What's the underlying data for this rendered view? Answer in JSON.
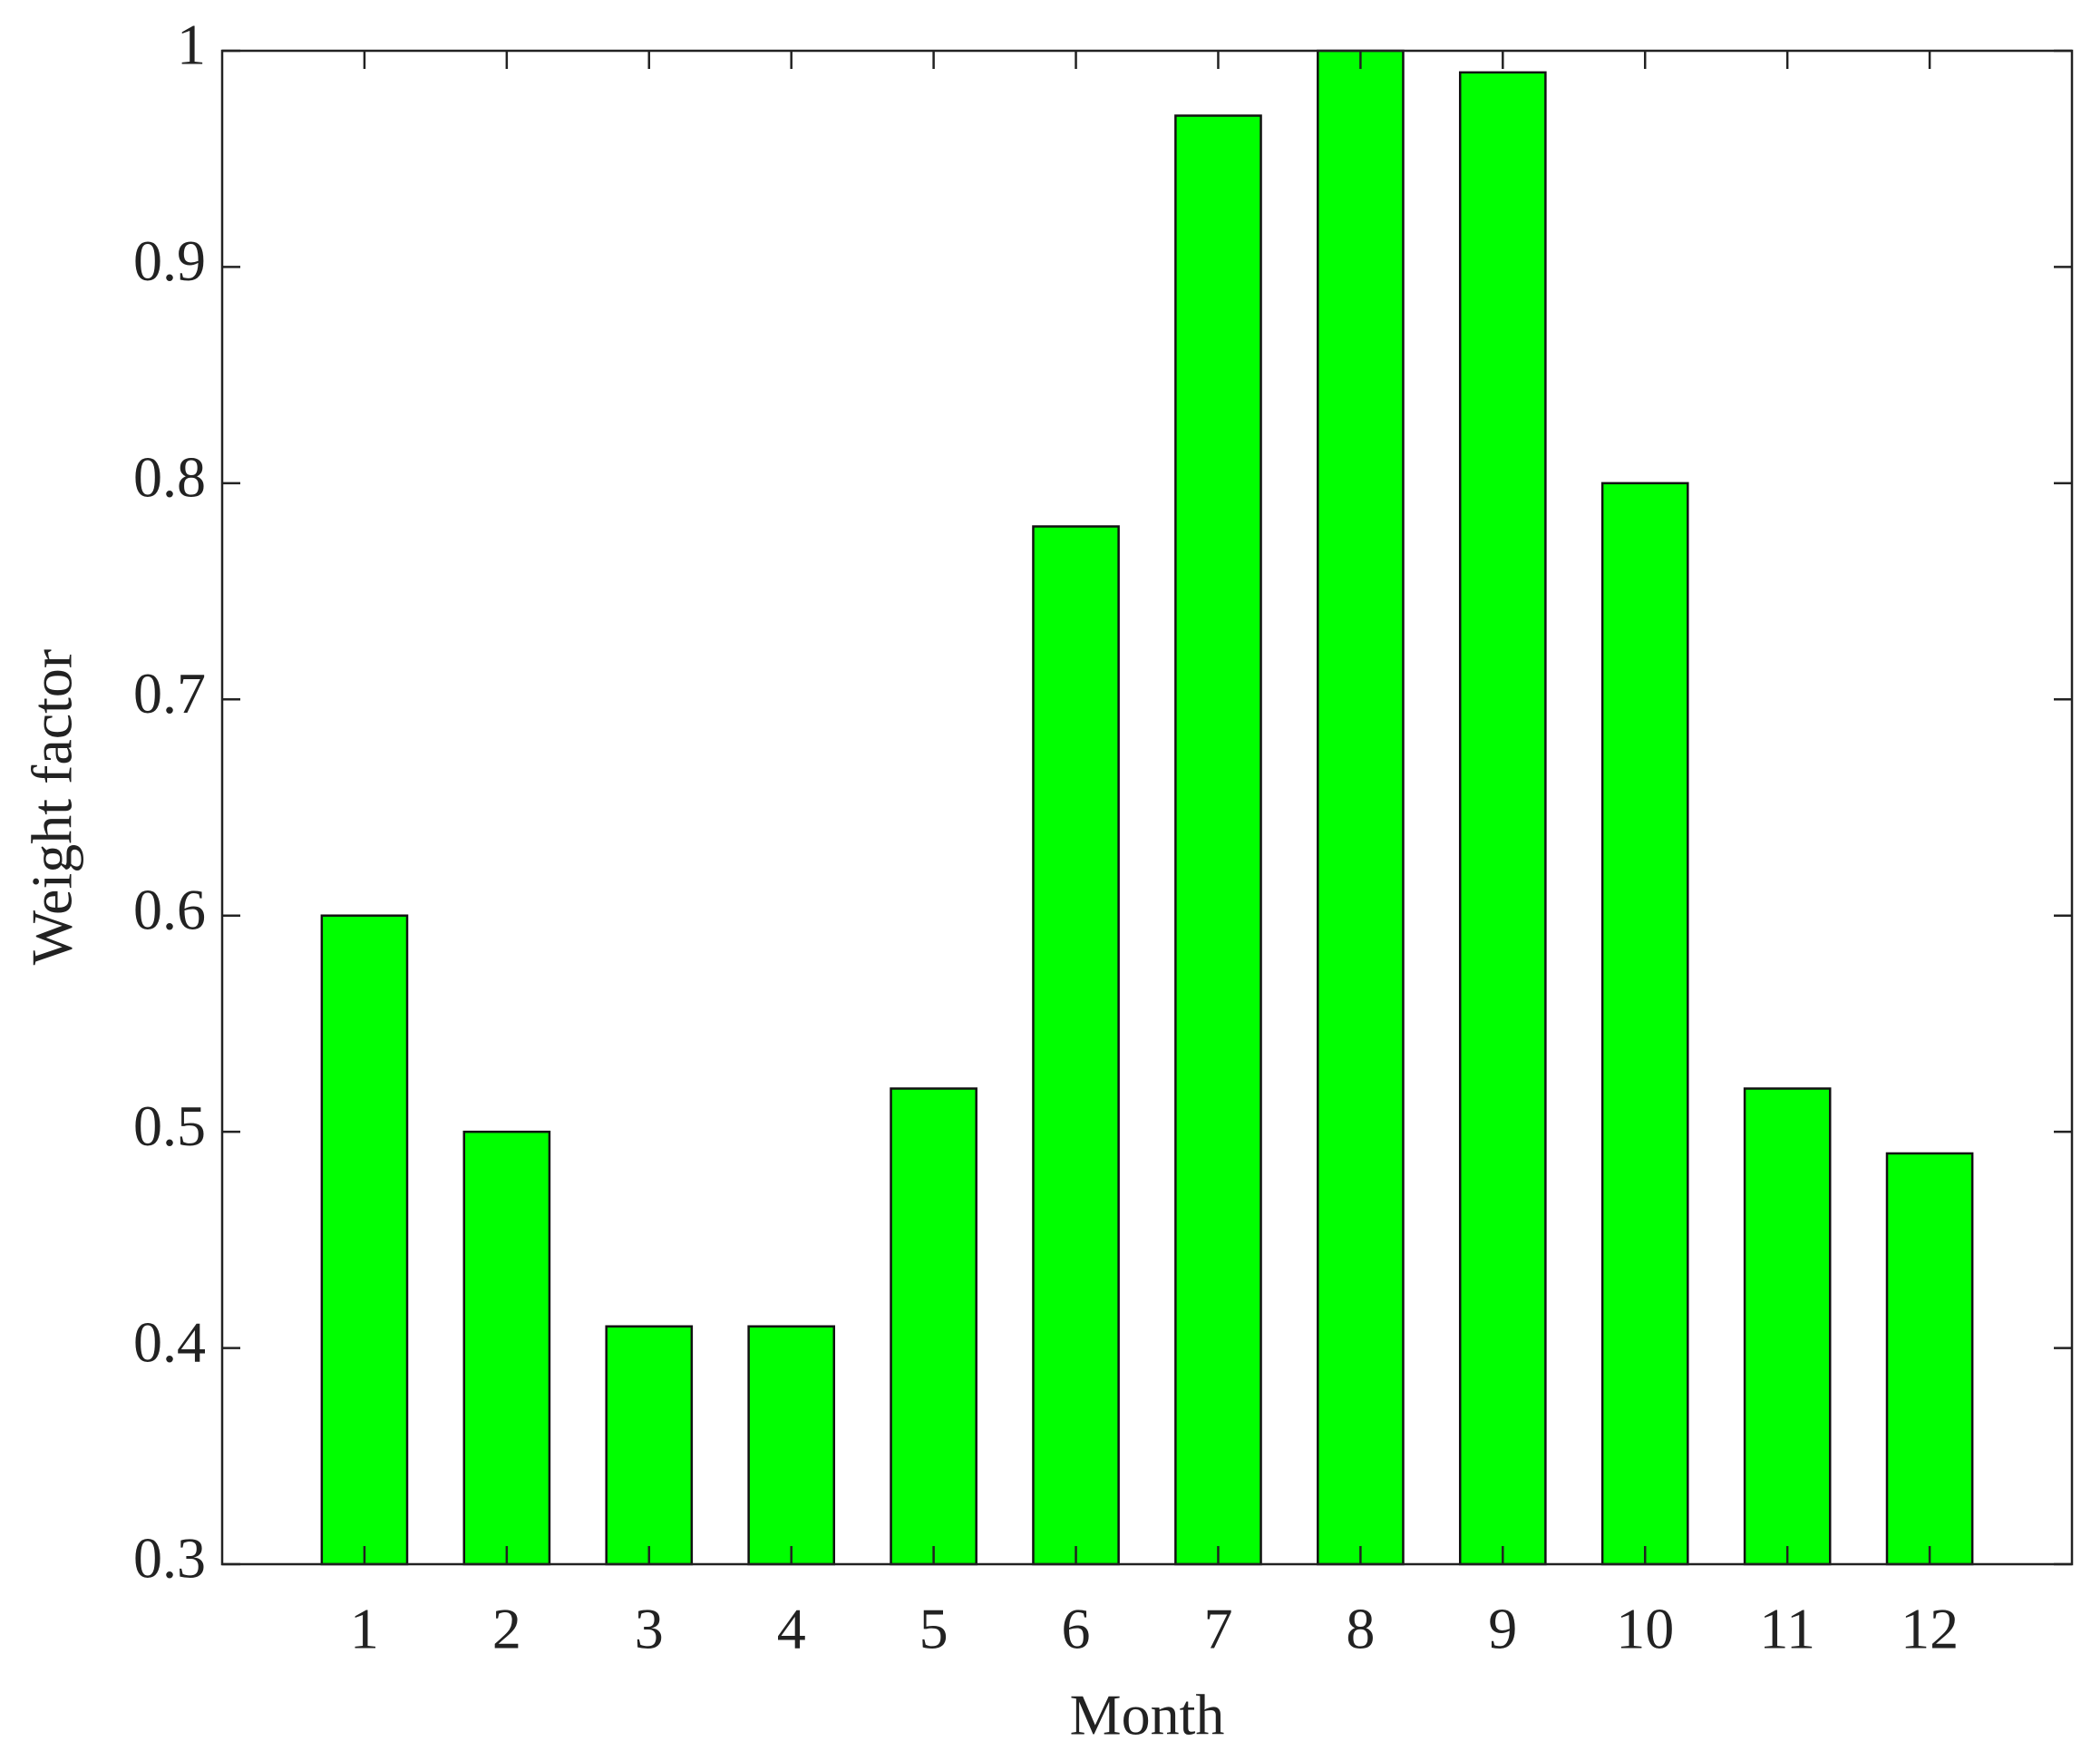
{
  "chart_data": {
    "type": "bar",
    "x_label": "Month",
    "y_label": "Weight factor",
    "x": [
      1,
      2,
      3,
      4,
      5,
      6,
      7,
      8,
      9,
      10,
      11,
      12
    ],
    "values": [
      0.6,
      0.5,
      0.41,
      0.41,
      0.52,
      0.78,
      0.97,
      1.0,
      0.99,
      0.8,
      0.52,
      0.49
    ],
    "color": "#00ff00",
    "xlim": [
      0,
      13
    ],
    "xticks": [
      1,
      2,
      3,
      4,
      5,
      6,
      7,
      8,
      9,
      10,
      11,
      12
    ],
    "ylim": [
      0.3,
      1
    ],
    "yticks": [
      0.3,
      0.4,
      0.5,
      0.6,
      0.7,
      0.8,
      0.9,
      1
    ],
    "grid": false
  }
}
